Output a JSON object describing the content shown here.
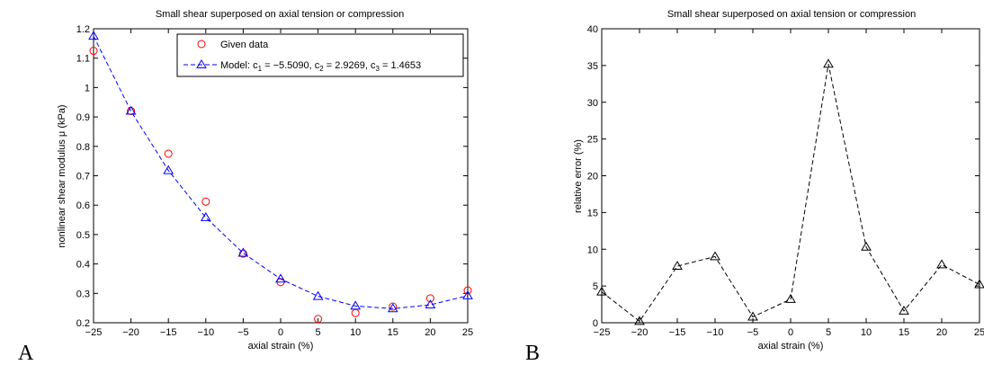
{
  "chart_data": [
    {
      "type": "line",
      "panel_label": "A",
      "title": "Small shear superposed on axial tension or compression",
      "xlabel": "axial strain (%)",
      "ylabel": "nonlinear shear modulus μ (kPa)",
      "xlim": [
        -25,
        25
      ],
      "ylim": [
        0.2,
        1.2
      ],
      "xticks": [
        -25,
        -20,
        -15,
        -10,
        -5,
        0,
        5,
        10,
        15,
        20,
        25
      ],
      "xtick_labels": [
        "−25",
        "−20",
        "−15",
        "−10",
        "−5",
        "0",
        "5",
        "10",
        "15",
        "20",
        "25"
      ],
      "yticks": [
        0.2,
        0.3,
        0.4,
        0.5,
        0.6,
        0.7,
        0.8,
        0.9,
        1.0,
        1.1,
        1.2
      ],
      "ytick_labels": [
        "0.2",
        "0.3",
        "0.4",
        "0.5",
        "0.6",
        "0.7",
        "0.8",
        "0.9",
        "1",
        "1.1",
        "1.2"
      ],
      "grid": false,
      "legend_position": "top-right",
      "x": [
        -25,
        -20,
        -15,
        -10,
        -5,
        0,
        5,
        10,
        15,
        20,
        25
      ],
      "series": [
        {
          "name": "Given data",
          "marker": "circle",
          "color": "#ff0000",
          "line": "none",
          "values": [
            1.125,
            0.92,
            0.775,
            0.612,
            0.435,
            0.338,
            0.213,
            0.233,
            0.255,
            0.283,
            0.31
          ]
        },
        {
          "name": "Model: c1 = −5.5090, c2 = 2.9269, c3 = 1.4653",
          "legend_parts": [
            "Model: c",
            "1",
            " = −5.5090, c",
            "2",
            " = 2.9269, c",
            "3",
            " = 1.4653"
          ],
          "marker": "triangle",
          "color": "#0000ff",
          "line": "dashed",
          "values": [
            1.175,
            0.92,
            0.718,
            0.558,
            0.437,
            0.349,
            0.29,
            0.257,
            0.248,
            0.261,
            0.292
          ]
        }
      ]
    },
    {
      "type": "line",
      "panel_label": "B",
      "title": "Small shear superposed on axial tension or compression",
      "xlabel": "axial strain (%)",
      "ylabel": "relative error (%)",
      "xlim": [
        -25,
        25
      ],
      "ylim": [
        0,
        40
      ],
      "xticks": [
        -25,
        -20,
        -15,
        -10,
        -5,
        0,
        5,
        10,
        15,
        20,
        25
      ],
      "xtick_labels": [
        "−25",
        "−20",
        "−15",
        "−10",
        "−5",
        "0",
        "5",
        "10",
        "15",
        "20",
        "25"
      ],
      "yticks": [
        0,
        5,
        10,
        15,
        20,
        25,
        30,
        35,
        40
      ],
      "ytick_labels": [
        "0",
        "5",
        "10",
        "15",
        "20",
        "25",
        "30",
        "35",
        "40"
      ],
      "grid": false,
      "x": [
        -25,
        -20,
        -15,
        -10,
        -5,
        0,
        5,
        10,
        15,
        20,
        25
      ],
      "series": [
        {
          "marker": "triangle",
          "color": "#000000",
          "line": "dashed",
          "values": [
            4.2,
            0.2,
            7.7,
            9.0,
            0.8,
            3.2,
            35.2,
            10.3,
            1.6,
            7.9,
            5.2
          ]
        }
      ]
    }
  ]
}
